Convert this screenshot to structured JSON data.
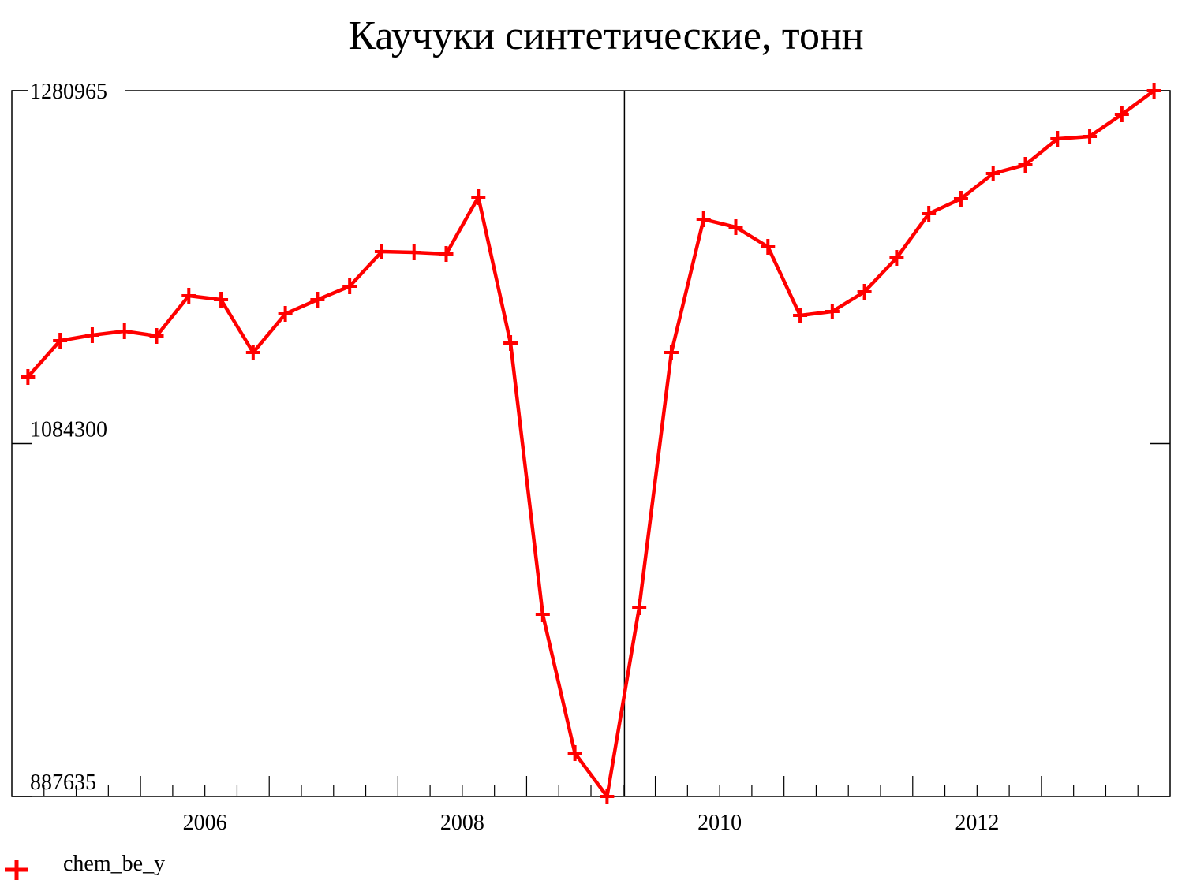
{
  "chart_data": {
    "type": "line",
    "title": "Каучуки синтетические, тонн",
    "x": [
      2005.125,
      2005.375,
      2005.625,
      2005.875,
      2006.125,
      2006.375,
      2006.625,
      2006.875,
      2007.125,
      2007.375,
      2007.625,
      2007.875,
      2008.125,
      2008.375,
      2008.625,
      2008.875,
      2009.125,
      2009.375,
      2009.625,
      2009.875,
      2010.125,
      2010.375,
      2010.625,
      2010.875,
      2011.125,
      2011.375,
      2011.625,
      2011.875,
      2012.125,
      2012.375,
      2012.625,
      2012.875,
      2013.125,
      2013.375,
      2013.625,
      2013.875
    ],
    "series": [
      {
        "name": "chem_be_y",
        "color": "#ff0000",
        "values": [
          1121435,
          1141649,
          1144725,
          1146923,
          1144286,
          1166699,
          1164502,
          1135057,
          1156591,
          1164502,
          1171973,
          1191309,
          1190870,
          1189991,
          1221632,
          1140331,
          989153,
          911806,
          887635,
          993108,
          1135057,
          1209327,
          1204932,
          1193945,
          1155712,
          1157909,
          1168896,
          1187793,
          1212403,
          1220753,
          1234816,
          1239650,
          1254153,
          1255471,
          1267777,
          1280965
        ]
      }
    ],
    "xlim": [
      2005,
      2014
    ],
    "xticks": [
      {
        "value": 2006.5,
        "label": "2006"
      },
      {
        "value": 2008.5,
        "label": "2008"
      },
      {
        "value": 2010.5,
        "label": "2010"
      },
      {
        "value": 2012.5,
        "label": "2012"
      }
    ],
    "ylim": [
      887635,
      1280965
    ],
    "yticks": [
      887635,
      1084300,
      1280965
    ],
    "vline": 2009.76
  }
}
